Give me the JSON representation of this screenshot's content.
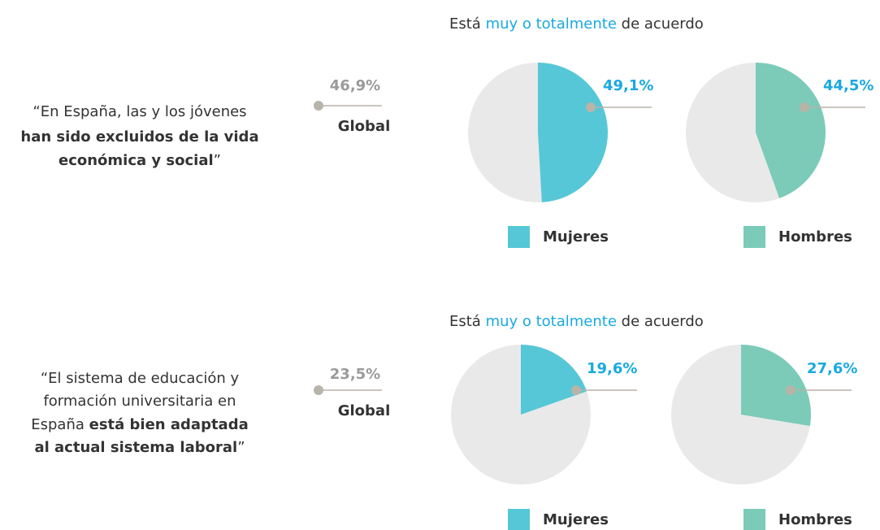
{
  "chart_data": [
    {
      "type": "pie",
      "heading": [
        {
          "text": "Está "
        },
        {
          "text": "muy o totalmente",
          "highlight": true
        },
        {
          "text": " de acuerdo"
        }
      ],
      "quote": [
        [
          {
            "text": "“En España, las y los jóvenes"
          }
        ],
        [
          {
            "text": "han sido excluidos de la vida",
            "bold": true
          }
        ],
        [
          {
            "text": "económica y social",
            "bold": true
          },
          {
            "text": "”"
          }
        ]
      ],
      "global": {
        "name": "Global",
        "value": 46.9,
        "value_label": "46,9%"
      },
      "series": [
        {
          "name": "Mujeres",
          "color": "#56c7d7",
          "value": 49.1,
          "value_label": "49,1%"
        },
        {
          "name": "Hombres",
          "color": "#7bcbb8",
          "value": 44.5,
          "value_label": "44,5%"
        }
      ]
    },
    {
      "type": "pie",
      "heading": [
        {
          "text": "Está "
        },
        {
          "text": "muy o totalmente",
          "highlight": true
        },
        {
          "text": " de acuerdo"
        }
      ],
      "quote": [
        [
          {
            "text": "“El sistema de educación y"
          }
        ],
        [
          {
            "text": "formación universitaria en"
          }
        ],
        [
          {
            "text": "España "
          },
          {
            "text": "está bien adaptada",
            "bold": true
          }
        ],
        [
          {
            "text": "al actual sistema laboral",
            "bold": true
          },
          {
            "text": "”"
          }
        ]
      ],
      "global": {
        "name": "Global",
        "value": 23.5,
        "value_label": "23,5%"
      },
      "series": [
        {
          "name": "Mujeres",
          "color": "#56c7d7",
          "value": 19.6,
          "value_label": "19,6%"
        },
        {
          "name": "Hombres",
          "color": "#7bcbb8",
          "value": 27.6,
          "value_label": "27,6%"
        }
      ]
    }
  ]
}
